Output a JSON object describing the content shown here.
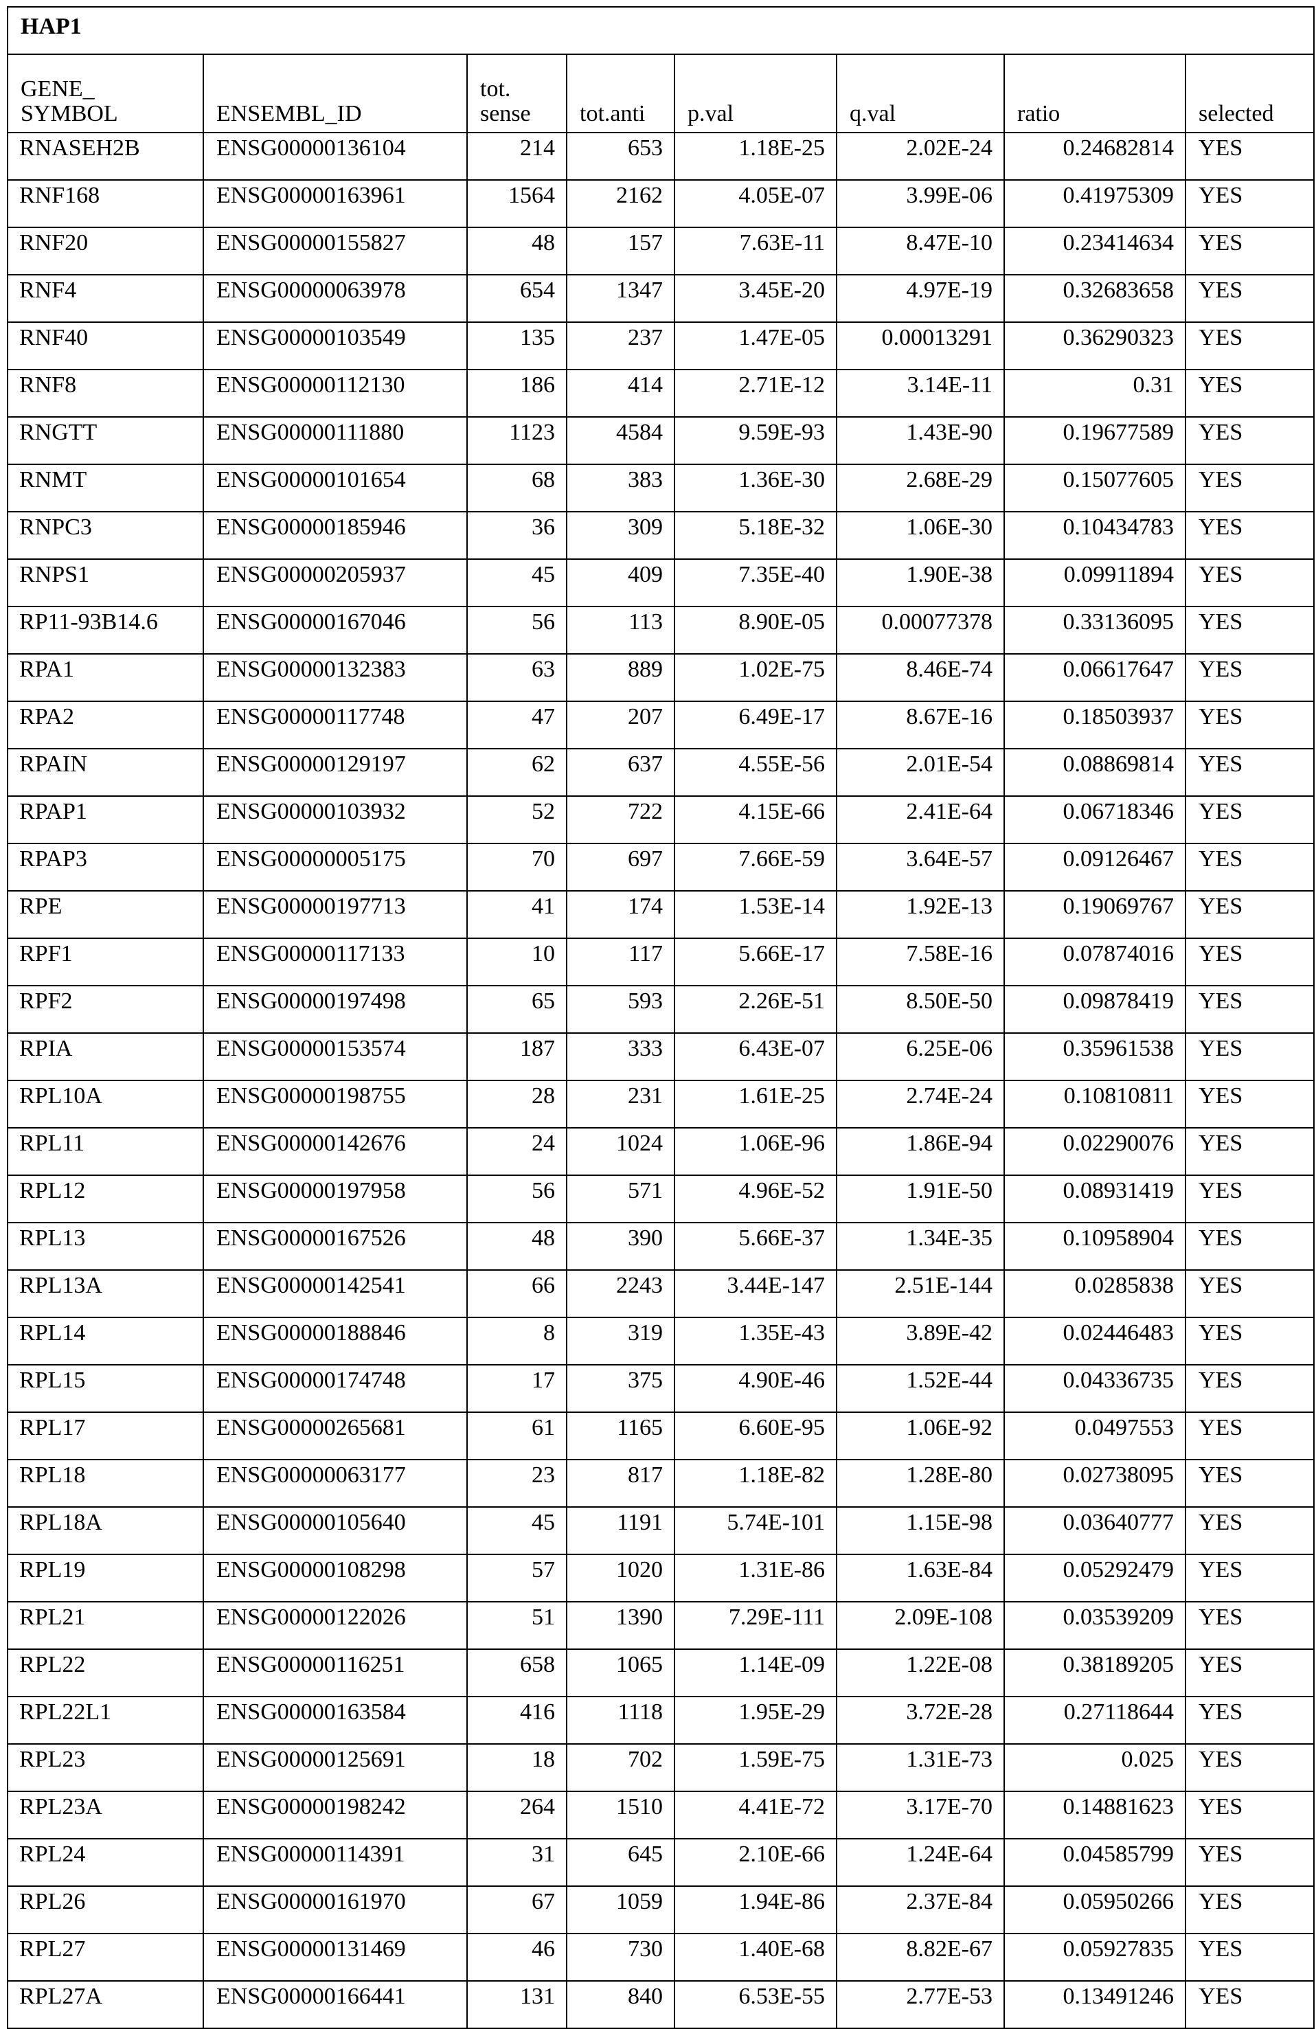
{
  "table": {
    "title": "HAP1",
    "columns": [
      "GENE_ SYMBOL",
      "ENSEMBL_ID",
      "tot. sense",
      "tot.anti",
      "p.val",
      "q.val",
      "ratio",
      "selected"
    ],
    "rows": [
      [
        "RNASEH2B",
        "ENSG00000136104",
        "214",
        "653",
        "1.18E-25",
        "2.02E-24",
        "0.24682814",
        "YES"
      ],
      [
        "RNF168",
        "ENSG00000163961",
        "1564",
        "2162",
        "4.05E-07",
        "3.99E-06",
        "0.41975309",
        "YES"
      ],
      [
        "RNF20",
        "ENSG00000155827",
        "48",
        "157",
        "7.63E-11",
        "8.47E-10",
        "0.23414634",
        "YES"
      ],
      [
        "RNF4",
        "ENSG00000063978",
        "654",
        "1347",
        "3.45E-20",
        "4.97E-19",
        "0.32683658",
        "YES"
      ],
      [
        "RNF40",
        "ENSG00000103549",
        "135",
        "237",
        "1.47E-05",
        "0.00013291",
        "0.36290323",
        "YES"
      ],
      [
        "RNF8",
        "ENSG00000112130",
        "186",
        "414",
        "2.71E-12",
        "3.14E-11",
        "0.31",
        "YES"
      ],
      [
        "RNGTT",
        "ENSG00000111880",
        "1123",
        "4584",
        "9.59E-93",
        "1.43E-90",
        "0.19677589",
        "YES"
      ],
      [
        "RNMT",
        "ENSG00000101654",
        "68",
        "383",
        "1.36E-30",
        "2.68E-29",
        "0.15077605",
        "YES"
      ],
      [
        "RNPC3",
        "ENSG00000185946",
        "36",
        "309",
        "5.18E-32",
        "1.06E-30",
        "0.10434783",
        "YES"
      ],
      [
        "RNPS1",
        "ENSG00000205937",
        "45",
        "409",
        "7.35E-40",
        "1.90E-38",
        "0.09911894",
        "YES"
      ],
      [
        "RP11-93B14.6",
        "ENSG00000167046",
        "56",
        "113",
        "8.90E-05",
        "0.00077378",
        "0.33136095",
        "YES"
      ],
      [
        "RPA1",
        "ENSG00000132383",
        "63",
        "889",
        "1.02E-75",
        "8.46E-74",
        "0.06617647",
        "YES"
      ],
      [
        "RPA2",
        "ENSG00000117748",
        "47",
        "207",
        "6.49E-17",
        "8.67E-16",
        "0.18503937",
        "YES"
      ],
      [
        "RPAIN",
        "ENSG00000129197",
        "62",
        "637",
        "4.55E-56",
        "2.01E-54",
        "0.08869814",
        "YES"
      ],
      [
        "RPAP1",
        "ENSG00000103932",
        "52",
        "722",
        "4.15E-66",
        "2.41E-64",
        "0.06718346",
        "YES"
      ],
      [
        "RPAP3",
        "ENSG00000005175",
        "70",
        "697",
        "7.66E-59",
        "3.64E-57",
        "0.09126467",
        "YES"
      ],
      [
        "RPE",
        "ENSG00000197713",
        "41",
        "174",
        "1.53E-14",
        "1.92E-13",
        "0.19069767",
        "YES"
      ],
      [
        "RPF1",
        "ENSG00000117133",
        "10",
        "117",
        "5.66E-17",
        "7.58E-16",
        "0.07874016",
        "YES"
      ],
      [
        "RPF2",
        "ENSG00000197498",
        "65",
        "593",
        "2.26E-51",
        "8.50E-50",
        "0.09878419",
        "YES"
      ],
      [
        "RPIA",
        "ENSG00000153574",
        "187",
        "333",
        "6.43E-07",
        "6.25E-06",
        "0.35961538",
        "YES"
      ],
      [
        "RPL10A",
        "ENSG00000198755",
        "28",
        "231",
        "1.61E-25",
        "2.74E-24",
        "0.10810811",
        "YES"
      ],
      [
        "RPL11",
        "ENSG00000142676",
        "24",
        "1024",
        "1.06E-96",
        "1.86E-94",
        "0.02290076",
        "YES"
      ],
      [
        "RPL12",
        "ENSG00000197958",
        "56",
        "571",
        "4.96E-52",
        "1.91E-50",
        "0.08931419",
        "YES"
      ],
      [
        "RPL13",
        "ENSG00000167526",
        "48",
        "390",
        "5.66E-37",
        "1.34E-35",
        "0.10958904",
        "YES"
      ],
      [
        "RPL13A",
        "ENSG00000142541",
        "66",
        "2243",
        "3.44E-147",
        "2.51E-144",
        "0.0285838",
        "YES"
      ],
      [
        "RPL14",
        "ENSG00000188846",
        "8",
        "319",
        "1.35E-43",
        "3.89E-42",
        "0.02446483",
        "YES"
      ],
      [
        "RPL15",
        "ENSG00000174748",
        "17",
        "375",
        "4.90E-46",
        "1.52E-44",
        "0.04336735",
        "YES"
      ],
      [
        "RPL17",
        "ENSG00000265681",
        "61",
        "1165",
        "6.60E-95",
        "1.06E-92",
        "0.0497553",
        "YES"
      ],
      [
        "RPL18",
        "ENSG00000063177",
        "23",
        "817",
        "1.18E-82",
        "1.28E-80",
        "0.02738095",
        "YES"
      ],
      [
        "RPL18A",
        "ENSG00000105640",
        "45",
        "1191",
        "5.74E-101",
        "1.15E-98",
        "0.03640777",
        "YES"
      ],
      [
        "RPL19",
        "ENSG00000108298",
        "57",
        "1020",
        "1.31E-86",
        "1.63E-84",
        "0.05292479",
        "YES"
      ],
      [
        "RPL21",
        "ENSG00000122026",
        "51",
        "1390",
        "7.29E-111",
        "2.09E-108",
        "0.03539209",
        "YES"
      ],
      [
        "RPL22",
        "ENSG00000116251",
        "658",
        "1065",
        "1.14E-09",
        "1.22E-08",
        "0.38189205",
        "YES"
      ],
      [
        "RPL22L1",
        "ENSG00000163584",
        "416",
        "1118",
        "1.95E-29",
        "3.72E-28",
        "0.27118644",
        "YES"
      ],
      [
        "RPL23",
        "ENSG00000125691",
        "18",
        "702",
        "1.59E-75",
        "1.31E-73",
        "0.025",
        "YES"
      ],
      [
        "RPL23A",
        "ENSG00000198242",
        "264",
        "1510",
        "4.41E-72",
        "3.17E-70",
        "0.14881623",
        "YES"
      ],
      [
        "RPL24",
        "ENSG00000114391",
        "31",
        "645",
        "2.10E-66",
        "1.24E-64",
        "0.04585799",
        "YES"
      ],
      [
        "RPL26",
        "ENSG00000161970",
        "67",
        "1059",
        "1.94E-86",
        "2.37E-84",
        "0.05950266",
        "YES"
      ],
      [
        "RPL27",
        "ENSG00000131469",
        "46",
        "730",
        "1.40E-68",
        "8.82E-67",
        "0.05927835",
        "YES"
      ],
      [
        "RPL27A",
        "ENSG00000166441",
        "131",
        "840",
        "6.53E-55",
        "2.77E-53",
        "0.13491246",
        "YES"
      ]
    ]
  }
}
